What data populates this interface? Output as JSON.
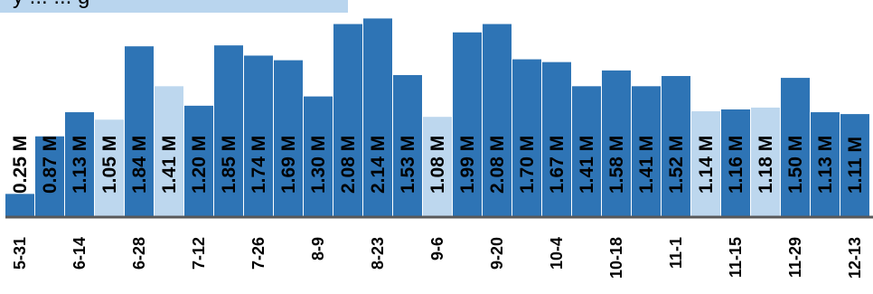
{
  "legend": {
    "text": "y ... ... g"
  },
  "colors": {
    "bar_dark": "#2e74b5",
    "bar_light": "#bdd7ee",
    "baseline": "#595959"
  },
  "chart_data": {
    "type": "bar",
    "bars": [
      {
        "value": 0.25,
        "label": "0.25 M",
        "highlight": false
      },
      {
        "value": 0.87,
        "label": "0.87 M",
        "highlight": false
      },
      {
        "value": 1.13,
        "label": "1.13 M",
        "highlight": false
      },
      {
        "value": 1.05,
        "label": "1.05 M",
        "highlight": true
      },
      {
        "value": 1.84,
        "label": "1.84 M",
        "highlight": false
      },
      {
        "value": 1.41,
        "label": "1.41 M",
        "highlight": true
      },
      {
        "value": 1.2,
        "label": "1.20 M",
        "highlight": false
      },
      {
        "value": 1.85,
        "label": "1.85 M",
        "highlight": false
      },
      {
        "value": 1.74,
        "label": "1.74 M",
        "highlight": false
      },
      {
        "value": 1.69,
        "label": "1.69 M",
        "highlight": false
      },
      {
        "value": 1.3,
        "label": "1.30 M",
        "highlight": false
      },
      {
        "value": 2.08,
        "label": "2.08 M",
        "highlight": false
      },
      {
        "value": 2.14,
        "label": "2.14 M",
        "highlight": false
      },
      {
        "value": 1.53,
        "label": "1.53 M",
        "highlight": false
      },
      {
        "value": 1.08,
        "label": "1.08 M",
        "highlight": true
      },
      {
        "value": 1.99,
        "label": "1.99 M",
        "highlight": false
      },
      {
        "value": 2.08,
        "label": "2.08 M",
        "highlight": false
      },
      {
        "value": 1.7,
        "label": "1.70 M",
        "highlight": false
      },
      {
        "value": 1.67,
        "label": "1.67 M",
        "highlight": false
      },
      {
        "value": 1.41,
        "label": "1.41 M",
        "highlight": false
      },
      {
        "value": 1.58,
        "label": "1.58 M",
        "highlight": false
      },
      {
        "value": 1.41,
        "label": "1.41 M",
        "highlight": false
      },
      {
        "value": 1.52,
        "label": "1.52 M",
        "highlight": false
      },
      {
        "value": 1.14,
        "label": "1.14 M",
        "highlight": true
      },
      {
        "value": 1.16,
        "label": "1.16 M",
        "highlight": false
      },
      {
        "value": 1.18,
        "label": "1.18 M",
        "highlight": true
      },
      {
        "value": 1.5,
        "label": "1.50 M",
        "highlight": false
      },
      {
        "value": 1.13,
        "label": "1.13 M",
        "highlight": false
      },
      {
        "value": 1.11,
        "label": "1.11 M",
        "highlight": false
      }
    ],
    "tick_labels": [
      {
        "label": "5-31",
        "index": 0
      },
      {
        "label": "6-14",
        "index": 2
      },
      {
        "label": "6-28",
        "index": 4
      },
      {
        "label": "7-12",
        "index": 6
      },
      {
        "label": "7-26",
        "index": 8
      },
      {
        "label": "8-9",
        "index": 10
      },
      {
        "label": "8-23",
        "index": 12
      },
      {
        "label": "9-6",
        "index": 14
      },
      {
        "label": "9-20",
        "index": 16
      },
      {
        "label": "10-4",
        "index": 18
      },
      {
        "label": "10-18",
        "index": 20
      },
      {
        "label": "11-1",
        "index": 22
      },
      {
        "label": "11-15",
        "index": 24
      },
      {
        "label": "11-29",
        "index": 26
      },
      {
        "label": "12-13",
        "index": 28
      }
    ],
    "ylim": [
      0,
      2.3
    ]
  }
}
